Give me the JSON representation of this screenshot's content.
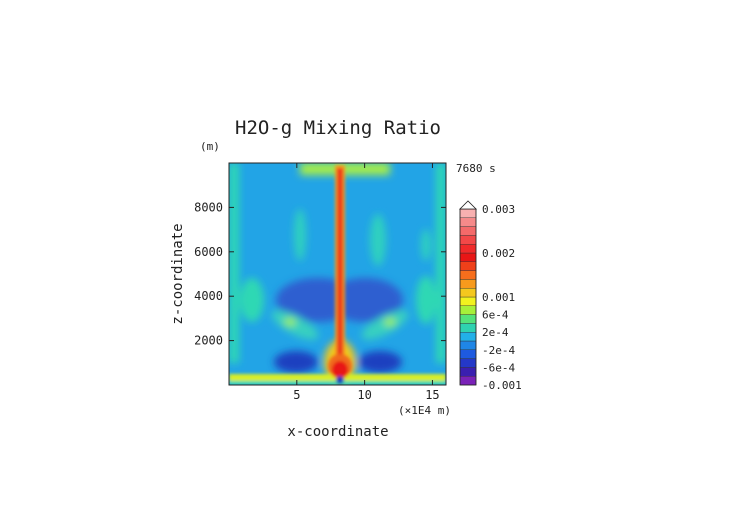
{
  "chart_data": {
    "type": "heatmap",
    "title": "H2O-g Mixing Ratio",
    "xlabel": "x-coordinate",
    "ylabel": "z-coordinate",
    "y_units": "(m)",
    "x_units": "(×1E4 m)",
    "time_label": "7680 s",
    "x_range": [
      0.0,
      16.0
    ],
    "y_range": [
      0,
      10000
    ],
    "x_ticks": [
      5,
      10,
      15
    ],
    "y_ticks": [
      2000,
      4000,
      6000,
      8000
    ],
    "colorbar": {
      "levels": [
        -0.001,
        -0.0008,
        -0.0006,
        -0.0004,
        -0.0002,
        0,
        0.0002,
        0.0004,
        0.0006,
        0.0008,
        0.001,
        0.0012,
        0.0014,
        0.0016,
        0.0018,
        0.002,
        0.0022,
        0.0024,
        0.0026,
        0.0028,
        0.003
      ],
      "tick_labels": [
        "0.003",
        "0.002",
        "0.001",
        "6e-4",
        "2e-4",
        "-2e-4",
        "-6e-4",
        "-0.001"
      ],
      "colors": [
        "#7a22b8",
        "#3a1fb0",
        "#2438c8",
        "#1e5ae0",
        "#1f86e6",
        "#22b0e8",
        "#2ed2b0",
        "#54e27a",
        "#a6f03a",
        "#f2f21e",
        "#f4c81e",
        "#f79a1c",
        "#f76e1c",
        "#ef401a",
        "#e81616",
        "#f02a2a",
        "#f24848",
        "#f46a6a",
        "#f68a8a",
        "#f8b0b0"
      ]
    }
  }
}
